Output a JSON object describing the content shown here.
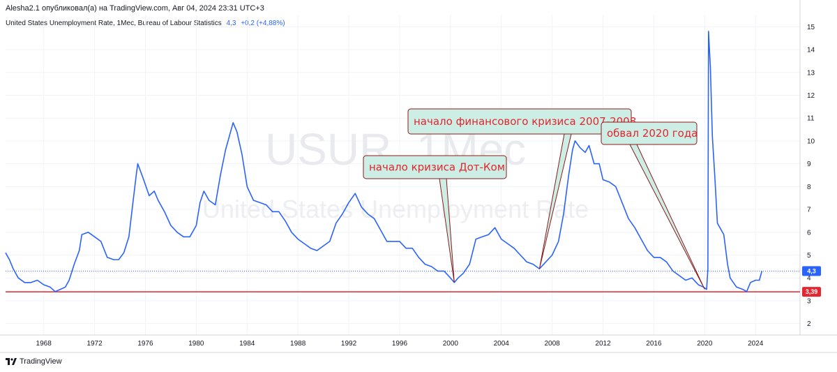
{
  "header": {
    "text": "Alesha2.1 опубликовал(а) на TradingView.com, Авг 04, 2024 23:31 UTC+3"
  },
  "legend": {
    "title": "United States Unemployment Rate, 1Мес, Bureau of Labour Statistics",
    "value": "4,3",
    "change": "+0,2 (+4,88%)"
  },
  "watermark": {
    "symbol": "USUR, 1Мес",
    "name": "United States Unemployment Rate"
  },
  "footer": {
    "brand": "TradingView"
  },
  "colors": {
    "series": "#2962ff",
    "level": "#e3262f",
    "annotation_bg": "#cdeee5",
    "annotation_border": "#8b1a1a",
    "annotation_text": "#e3262f"
  },
  "chart_data": {
    "type": "line",
    "title": "United States Unemployment Rate",
    "ylim": [
      1.5,
      15.5
    ],
    "xlim": [
      1965.0,
      2027.5
    ],
    "y_ticks": [
      2,
      3,
      4,
      5,
      6,
      7,
      8,
      9,
      10,
      11,
      12,
      13,
      14,
      15
    ],
    "x_ticks": [
      1968,
      1972,
      1976,
      1980,
      1984,
      1988,
      1992,
      1996,
      2000,
      2004,
      2008,
      2012,
      2016,
      2020,
      2024
    ],
    "last_value": 4.3,
    "last_value_label": "4,3",
    "level_line": {
      "value": 3.39,
      "label": "3,39"
    },
    "series": [
      {
        "name": "USUR",
        "points": [
          [
            1965.0,
            5.1
          ],
          [
            1965.3,
            4.8
          ],
          [
            1965.6,
            4.4
          ],
          [
            1966.0,
            4.0
          ],
          [
            1966.5,
            3.8
          ],
          [
            1967.0,
            3.8
          ],
          [
            1967.5,
            3.9
          ],
          [
            1968.0,
            3.7
          ],
          [
            1968.5,
            3.6
          ],
          [
            1968.9,
            3.4
          ],
          [
            1969.3,
            3.5
          ],
          [
            1969.7,
            3.6
          ],
          [
            1970.0,
            3.9
          ],
          [
            1970.4,
            4.6
          ],
          [
            1970.8,
            5.2
          ],
          [
            1971.0,
            5.9
          ],
          [
            1971.5,
            6.0
          ],
          [
            1972.0,
            5.8
          ],
          [
            1972.5,
            5.6
          ],
          [
            1973.0,
            4.9
          ],
          [
            1973.5,
            4.8
          ],
          [
            1973.9,
            4.8
          ],
          [
            1974.3,
            5.1
          ],
          [
            1974.7,
            5.8
          ],
          [
            1975.0,
            7.2
          ],
          [
            1975.3,
            8.6
          ],
          [
            1975.4,
            9.0
          ],
          [
            1975.8,
            8.4
          ],
          [
            1976.3,
            7.6
          ],
          [
            1976.7,
            7.8
          ],
          [
            1977.0,
            7.4
          ],
          [
            1977.5,
            6.9
          ],
          [
            1978.0,
            6.3
          ],
          [
            1978.5,
            6.0
          ],
          [
            1979.0,
            5.8
          ],
          [
            1979.5,
            5.8
          ],
          [
            1980.0,
            6.3
          ],
          [
            1980.3,
            7.3
          ],
          [
            1980.6,
            7.8
          ],
          [
            1981.0,
            7.4
          ],
          [
            1981.5,
            7.2
          ],
          [
            1981.9,
            8.5
          ],
          [
            1982.3,
            9.6
          ],
          [
            1982.7,
            10.4
          ],
          [
            1982.9,
            10.8
          ],
          [
            1983.2,
            10.4
          ],
          [
            1983.6,
            9.4
          ],
          [
            1984.0,
            8.0
          ],
          [
            1984.5,
            7.4
          ],
          [
            1985.0,
            7.3
          ],
          [
            1985.5,
            7.2
          ],
          [
            1986.0,
            6.9
          ],
          [
            1986.5,
            6.9
          ],
          [
            1987.0,
            6.5
          ],
          [
            1987.5,
            6.0
          ],
          [
            1988.0,
            5.7
          ],
          [
            1988.5,
            5.5
          ],
          [
            1989.0,
            5.3
          ],
          [
            1989.5,
            5.2
          ],
          [
            1990.0,
            5.4
          ],
          [
            1990.5,
            5.6
          ],
          [
            1991.0,
            6.4
          ],
          [
            1991.5,
            6.8
          ],
          [
            1992.0,
            7.3
          ],
          [
            1992.5,
            7.7
          ],
          [
            1993.0,
            7.1
          ],
          [
            1993.5,
            6.8
          ],
          [
            1994.0,
            6.6
          ],
          [
            1994.5,
            6.1
          ],
          [
            1995.0,
            5.6
          ],
          [
            1995.5,
            5.6
          ],
          [
            1996.0,
            5.6
          ],
          [
            1996.5,
            5.3
          ],
          [
            1997.0,
            5.3
          ],
          [
            1997.5,
            4.9
          ],
          [
            1998.0,
            4.6
          ],
          [
            1998.5,
            4.5
          ],
          [
            1999.0,
            4.3
          ],
          [
            1999.5,
            4.3
          ],
          [
            2000.0,
            4.0
          ],
          [
            2000.3,
            3.8
          ],
          [
            2000.6,
            4.0
          ],
          [
            2001.0,
            4.2
          ],
          [
            2001.5,
            4.6
          ],
          [
            2002.0,
            5.7
          ],
          [
            2002.5,
            5.8
          ],
          [
            2003.0,
            5.9
          ],
          [
            2003.5,
            6.2
          ],
          [
            2004.0,
            5.7
          ],
          [
            2004.5,
            5.5
          ],
          [
            2005.0,
            5.3
          ],
          [
            2005.5,
            5.0
          ],
          [
            2006.0,
            4.7
          ],
          [
            2006.5,
            4.6
          ],
          [
            2007.0,
            4.4
          ],
          [
            2007.5,
            4.7
          ],
          [
            2008.0,
            5.0
          ],
          [
            2008.5,
            5.6
          ],
          [
            2008.9,
            6.8
          ],
          [
            2009.3,
            8.5
          ],
          [
            2009.6,
            9.6
          ],
          [
            2009.8,
            10.0
          ],
          [
            2010.2,
            9.7
          ],
          [
            2010.6,
            9.5
          ],
          [
            2010.9,
            9.8
          ],
          [
            2011.3,
            9.0
          ],
          [
            2011.7,
            9.0
          ],
          [
            2012.0,
            8.3
          ],
          [
            2012.5,
            8.2
          ],
          [
            2013.0,
            8.0
          ],
          [
            2013.5,
            7.3
          ],
          [
            2014.0,
            6.6
          ],
          [
            2014.5,
            6.2
          ],
          [
            2015.0,
            5.7
          ],
          [
            2015.5,
            5.2
          ],
          [
            2016.0,
            4.9
          ],
          [
            2016.5,
            4.9
          ],
          [
            2017.0,
            4.7
          ],
          [
            2017.5,
            4.3
          ],
          [
            2018.0,
            4.1
          ],
          [
            2018.5,
            3.9
          ],
          [
            2019.0,
            4.0
          ],
          [
            2019.5,
            3.7
          ],
          [
            2019.9,
            3.6
          ],
          [
            2020.15,
            3.5
          ],
          [
            2020.25,
            4.4
          ],
          [
            2020.3,
            14.8
          ],
          [
            2020.45,
            13.2
          ],
          [
            2020.6,
            10.2
          ],
          [
            2020.8,
            8.4
          ],
          [
            2021.0,
            6.4
          ],
          [
            2021.5,
            5.9
          ],
          [
            2021.8,
            4.6
          ],
          [
            2022.0,
            4.0
          ],
          [
            2022.5,
            3.6
          ],
          [
            2023.0,
            3.5
          ],
          [
            2023.3,
            3.4
          ],
          [
            2023.6,
            3.8
          ],
          [
            2024.0,
            3.9
          ],
          [
            2024.3,
            3.9
          ],
          [
            2024.5,
            4.3
          ]
        ]
      }
    ],
    "annotations": [
      {
        "text": "начало кризиса Дот-Ком",
        "target": [
          2000.3,
          3.8
        ]
      },
      {
        "text": "начало финансового кризиса 2007-2008",
        "target": [
          2007.0,
          4.4
        ]
      },
      {
        "text": "обвал 2020 года",
        "target": [
          2020.0,
          3.5
        ]
      }
    ]
  }
}
